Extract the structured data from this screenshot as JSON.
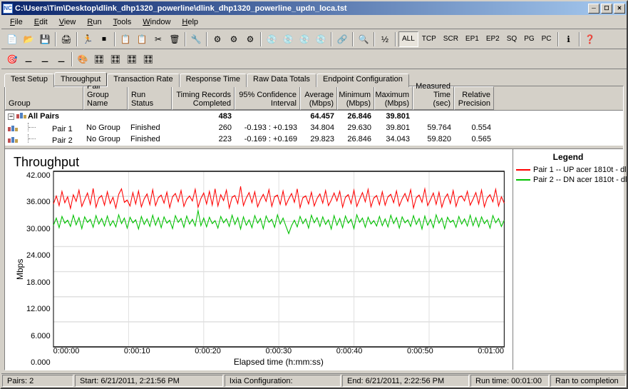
{
  "window": {
    "title": "C:\\Users\\Tim\\Desktop\\dlink_dhp1320_powerline\\dlink_dhp1320_powerline_updn_loca.tst",
    "icon_label": "NC"
  },
  "menu": [
    "File",
    "Edit",
    "View",
    "Run",
    "Tools",
    "Window",
    "Help"
  ],
  "toolbar_text_buttons": [
    "ALL",
    "TCP",
    "SCR",
    "EP1",
    "EP2",
    "SQ",
    "PG",
    "PC"
  ],
  "tabs": [
    "Test Setup",
    "Throughput",
    "Transaction Rate",
    "Response Time",
    "Raw Data Totals",
    "Endpoint Configuration"
  ],
  "active_tab": 1,
  "grid": {
    "columns": [
      {
        "label": "Group",
        "w": 110,
        "align": "l"
      },
      {
        "label": "Pair Group Name",
        "w": 62,
        "align": "l"
      },
      {
        "label": "Run Status",
        "w": 62,
        "align": "l"
      },
      {
        "label": "Timing Records Completed",
        "w": 88,
        "align": "r"
      },
      {
        "label": "95% Confidence Interval",
        "w": 92,
        "align": "r"
      },
      {
        "label": "Average (Mbps)",
        "w": 52,
        "align": "r"
      },
      {
        "label": "Minimum (Mbps)",
        "w": 52,
        "align": "r"
      },
      {
        "label": "Maximum (Mbps)",
        "w": 54,
        "align": "r"
      },
      {
        "label": "Measured Time (sec)",
        "w": 58,
        "align": "r"
      },
      {
        "label": "Relative Precision",
        "w": 56,
        "align": "r"
      }
    ],
    "rows": [
      {
        "bold": true,
        "tree": "root",
        "cells": [
          "All Pairs",
          "",
          "",
          "483",
          "",
          "64.457",
          "26.846",
          "39.801",
          "",
          ""
        ]
      },
      {
        "bold": false,
        "tree": "child",
        "cells": [
          "Pair 1",
          "No Group",
          "Finished",
          "260",
          "-0.193 : +0.193",
          "34.804",
          "29.630",
          "39.801",
          "59.764",
          "0.554"
        ]
      },
      {
        "bold": false,
        "tree": "child",
        "cells": [
          "Pair 2",
          "No Group",
          "Finished",
          "223",
          "-0.169 : +0.169",
          "29.823",
          "26.846",
          "34.043",
          "59.820",
          "0.565"
        ]
      }
    ]
  },
  "chart": {
    "title": "Throughput",
    "y_label": "Mbps",
    "x_label": "Elapsed time (h:mm:ss)",
    "y_ticks": [
      "42.000",
      "36.000",
      "30.000",
      "24.000",
      "18.000",
      "12.000",
      "6.000",
      "0.000"
    ],
    "y_min": 0,
    "y_max": 42,
    "x_ticks": [
      "0:00:00",
      "0:00:10",
      "0:00:20",
      "0:00:30",
      "0:00:40",
      "0:00:50",
      "0:01:00"
    ],
    "x_min": 0,
    "x_max": 60,
    "background": "#ffffff",
    "grid_color": "#e0e0e0",
    "series": [
      {
        "name": "Pair 1 -- UP acer 1810t - dl",
        "color": "#ff0000",
        "data": [
          34.2,
          36.1,
          33.8,
          37.2,
          34.5,
          35.9,
          33.1,
          36.4,
          34.8,
          37.5,
          33.6,
          35.2,
          36.8,
          34.1,
          37.9,
          33.4,
          35.6,
          36.2,
          33.9,
          37.1,
          34.3,
          35.8,
          33.2,
          36.5,
          37.8,
          34.6,
          35.1,
          33.7,
          36.9,
          34.2,
          37.3,
          33.5,
          35.4,
          36.6,
          34.0,
          37.6,
          33.8,
          35.7,
          36.3,
          34.4,
          37.0,
          33.3,
          35.9,
          36.7,
          34.7,
          37.4,
          33.6,
          35.3,
          36.1,
          34.9,
          37.7,
          33.4,
          35.5,
          36.8,
          34.2,
          37.2,
          33.9,
          37.8,
          33.7,
          36.4,
          35.0,
          37.5,
          33.2,
          35.8,
          36.2,
          34.3,
          38.4,
          33.8,
          35.6,
          36.9,
          34.5,
          37.1,
          33.5,
          35.2,
          36.5,
          34.8,
          37.6,
          33.6,
          35.9,
          36.3,
          34.1,
          37.3,
          33.9,
          35.4,
          36.7,
          34.6,
          37.8,
          33.3,
          35.7,
          36.1,
          34.2,
          37.0,
          33.7,
          35.5,
          36.6,
          34.4,
          37.4,
          33.8,
          35.1,
          36.8,
          34.9,
          37.2,
          33.4,
          35.8,
          36.4,
          34.3,
          37.5,
          33.6,
          35.3,
          36.9,
          34.7,
          37.7,
          33.5,
          35.6,
          36.2,
          34.0,
          37.1,
          33.9,
          35.9,
          36.5,
          34.5,
          37.3,
          33.7,
          35.4,
          36.7,
          34.8,
          37.6,
          33.2,
          35.7,
          36.3,
          34.6,
          37.8,
          33.8,
          35.2,
          36.8,
          34.1,
          37.0,
          33.4,
          35.5,
          36.6,
          34.3,
          37.4,
          33.6,
          35.8,
          36.1,
          34.9,
          37.2,
          33.9,
          35.3,
          36.9,
          34.2,
          37.5,
          33.5,
          35.6,
          36.4,
          34.7,
          37.7,
          33.7,
          35.9,
          34.4
        ]
      },
      {
        "name": "Pair 2 -- DN acer 1810t - dl",
        "color": "#00c000",
        "data": [
          29.1,
          30.8,
          28.5,
          31.2,
          29.6,
          30.3,
          28.8,
          31.5,
          29.2,
          30.9,
          28.3,
          31.1,
          29.8,
          30.5,
          28.6,
          31.4,
          29.4,
          30.7,
          28.9,
          31.3,
          29.0,
          30.2,
          28.7,
          31.6,
          29.5,
          30.8,
          28.4,
          31.0,
          29.7,
          30.4,
          28.2,
          31.2,
          29.3,
          30.6,
          28.8,
          31.5,
          29.1,
          30.9,
          28.5,
          31.1,
          29.6,
          30.3,
          28.3,
          31.4,
          29.8,
          30.7,
          28.6,
          31.3,
          29.4,
          30.5,
          28.9,
          32.6,
          29.0,
          30.8,
          28.7,
          31.0,
          29.5,
          30.2,
          28.4,
          31.2,
          29.7,
          30.6,
          28.8,
          31.5,
          29.3,
          30.9,
          28.2,
          31.1,
          29.1,
          30.4,
          28.5,
          31.4,
          29.6,
          30.7,
          28.3,
          31.3,
          29.8,
          30.5,
          28.6,
          31.6,
          29.4,
          30.8,
          28.9,
          27.1,
          29.0,
          30.3,
          28.7,
          31.2,
          29.5,
          30.6,
          28.4,
          31.5,
          29.7,
          30.9,
          28.8,
          31.1,
          29.3,
          30.4,
          28.2,
          31.4,
          29.1,
          30.7,
          28.5,
          31.3,
          29.6,
          30.5,
          28.3,
          31.6,
          29.8,
          30.8,
          28.6,
          31.0,
          29.4,
          30.2,
          28.9,
          31.2,
          29.0,
          30.6,
          28.7,
          31.5,
          29.5,
          30.9,
          28.4,
          31.1,
          29.7,
          30.4,
          28.8,
          31.4,
          29.3,
          30.7,
          28.2,
          31.3,
          29.1,
          30.5,
          28.5,
          31.6,
          29.6,
          30.8,
          28.3,
          31.0,
          29.8,
          30.3,
          28.6,
          31.2,
          29.4,
          30.6,
          28.9,
          31.5,
          29.0,
          30.9,
          28.7,
          31.1,
          29.5,
          30.4,
          28.4,
          31.4,
          29.7,
          30.7,
          28.8,
          30.3
        ]
      }
    ],
    "legend_title": "Legend"
  },
  "statusbar": {
    "pairs": "Pairs: 2",
    "start": "Start: 6/21/2011, 2:21:56 PM",
    "config": "Ixia Configuration:",
    "end": "End: 6/21/2011, 2:22:56 PM",
    "runtime": "Run time: 00:01:00",
    "status": "Ran to completion"
  }
}
